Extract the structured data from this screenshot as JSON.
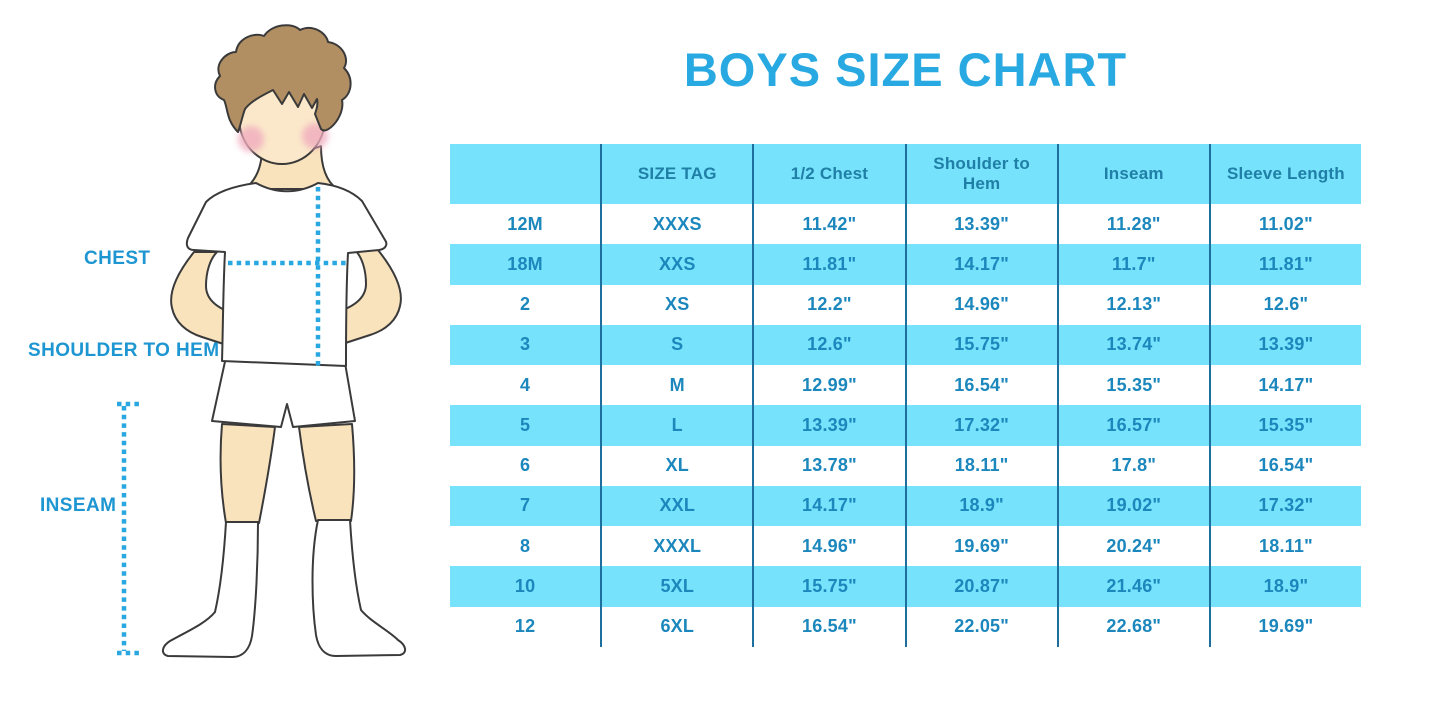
{
  "title": {
    "text": "BOYS SIZE CHART",
    "color": "#29A9E1"
  },
  "figure": {
    "labels": {
      "chest": "CHEST",
      "shoulder_to_hem": "SHOULDER TO HEM",
      "inseam": "INSEAM"
    },
    "label_color": "#1E96D2",
    "dotted_line_color": "#29A7E0",
    "skin_color": "#F9E3BC",
    "face_color": "#FBE8CA",
    "hair_color": "#B28F63",
    "cheek_color": "#F0ACBE",
    "outline_color": "#3A3A3A"
  },
  "table": {
    "stripe_fill": "#76E2FB",
    "header_text_color": "#1F7FA6",
    "body_text_color": "#1B87BC",
    "divider_color": "#1D6F9D"
  },
  "chart_data": {
    "type": "table",
    "title": "BOYS SIZE CHART",
    "columns": [
      "",
      "SIZE TAG",
      "1/2 Chest",
      "Shoulder to Hem",
      "Inseam",
      "Sleeve Length"
    ],
    "rows": [
      [
        "12M",
        "XXXS",
        "11.42\"",
        "13.39\"",
        "11.28\"",
        "11.02\""
      ],
      [
        "18M",
        "XXS",
        "11.81\"",
        "14.17\"",
        "11.7\"",
        "11.81\""
      ],
      [
        "2",
        "XS",
        "12.2\"",
        "14.96\"",
        "12.13\"",
        "12.6\""
      ],
      [
        "3",
        "S",
        "12.6\"",
        "15.75\"",
        "13.74\"",
        "13.39\""
      ],
      [
        "4",
        "M",
        "12.99\"",
        "16.54\"",
        "15.35\"",
        "14.17\""
      ],
      [
        "5",
        "L",
        "13.39\"",
        "17.32\"",
        "16.57\"",
        "15.35\""
      ],
      [
        "6",
        "XL",
        "13.78\"",
        "18.11\"",
        "17.8\"",
        "16.54\""
      ],
      [
        "7",
        "XXL",
        "14.17\"",
        "18.9\"",
        "19.02\"",
        "17.32\""
      ],
      [
        "8",
        "XXXL",
        "14.96\"",
        "19.69\"",
        "20.24\"",
        "18.11\""
      ],
      [
        "10",
        "5XL",
        "15.75\"",
        "20.87\"",
        "21.46\"",
        "18.9\""
      ],
      [
        "12",
        "6XL",
        "16.54\"",
        "22.05\"",
        "22.68\"",
        "19.69\""
      ]
    ],
    "row_striping": "white and light-cyan alternating, header cyan",
    "legend_position": "none",
    "grid": "vertical dividers only"
  }
}
